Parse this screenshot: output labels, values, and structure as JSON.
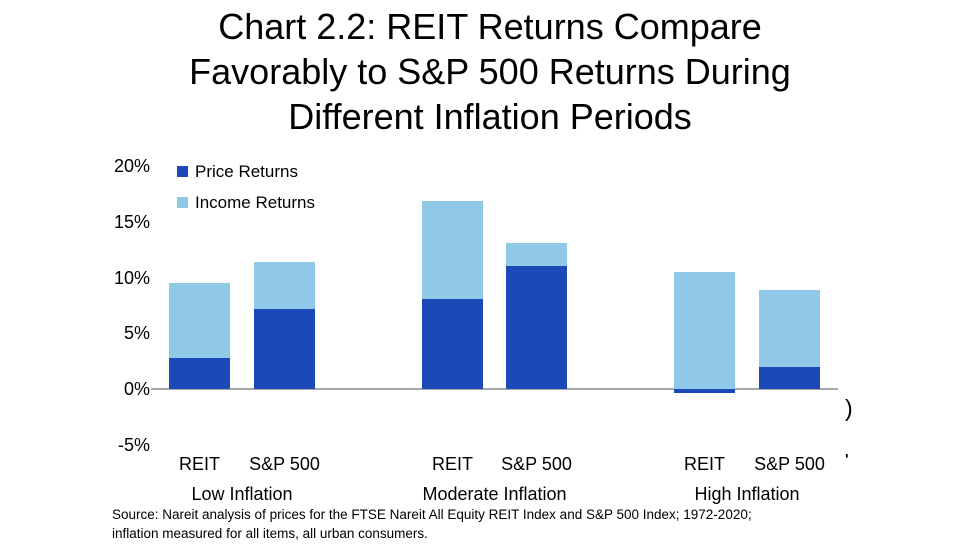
{
  "title": {
    "lines": [
      "Chart 2.2: REIT Returns Compare",
      "Favorably to S&P 500 Returns During",
      "Different Inflation Periods"
    ]
  },
  "legend": [
    {
      "label": "Price Returns",
      "color": "#1B49B5"
    },
    {
      "label": "Income Returns",
      "color": "#8FC9E7"
    }
  ],
  "chart_data": {
    "type": "bar",
    "stacked": true,
    "title": "Chart 2.2: REIT Returns Compare Favorably to S&P 500 Returns During Different Inflation Periods",
    "unit": "percent",
    "grid": false,
    "legend_position": "top-left inside plot",
    "axis_color": "#A6A6A6",
    "y_axis": {
      "range": [
        -5,
        20
      ],
      "ticks": [
        {
          "label": "20%",
          "value": 20
        },
        {
          "label": "15%",
          "value": 15
        },
        {
          "label": "10%",
          "value": 10
        },
        {
          "label": "5%",
          "value": 5
        },
        {
          "label": "0%",
          "value": 0
        },
        {
          "label": "-5%",
          "value": -5
        }
      ]
    },
    "series": [
      {
        "name": "Price Returns",
        "color": "#1B49B5"
      },
      {
        "name": "Income Returns",
        "color": "#8FC9E7"
      }
    ],
    "groups": [
      {
        "label": "Low Inflation",
        "bars": [
          {
            "label": "REIT",
            "price_return": 2.8,
            "income_return": 6.7
          },
          {
            "label": "S&P 500",
            "price_return": 7.2,
            "income_return": 4.2
          }
        ]
      },
      {
        "label": "Moderate Inflation",
        "bars": [
          {
            "label": "REIT",
            "price_return": 8.1,
            "income_return": 8.8
          },
          {
            "label": "S&P 500",
            "price_return": 11.0,
            "income_return": 2.1
          }
        ]
      },
      {
        "label": "High Inflation",
        "bars": [
          {
            "label": "REIT",
            "price_return": -0.4,
            "income_return": 10.5
          },
          {
            "label": "S&P 500",
            "price_return": 2.0,
            "income_return": 6.9
          }
        ]
      }
    ]
  },
  "source": {
    "lines": [
      "Source: Nareit analysis of prices for the FTSE Nareit All Equity REIT Index and S&P 500 Index; 1972-2020;",
      "inflation measured for all items, all urban consumers."
    ]
  },
  "artifacts": {
    "cropped_glyph": ")",
    "cropped_mark": "'"
  }
}
